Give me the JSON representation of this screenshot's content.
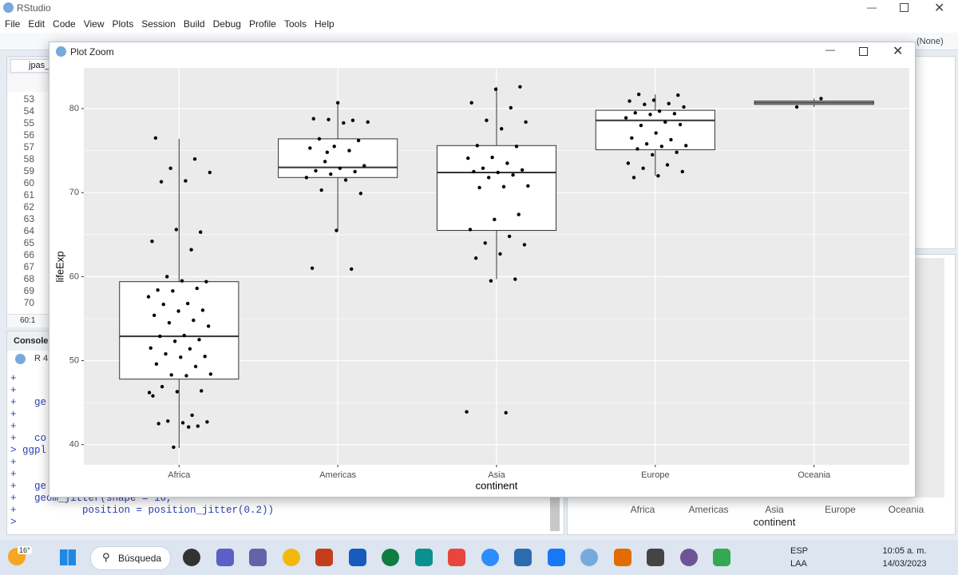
{
  "app": {
    "title": "RStudio",
    "menu": [
      "File",
      "Edit",
      "Code",
      "View",
      "Plots",
      "Session",
      "Build",
      "Debug",
      "Profile",
      "Tools",
      "Help"
    ],
    "project": "(None)",
    "editor_tab": "jpas_l",
    "line_numbers": [
      "53",
      "54",
      "55",
      "56",
      "57",
      "58",
      "59",
      "60",
      "61",
      "62",
      "63",
      "64",
      "65",
      "66",
      "67",
      "68",
      "69",
      "70"
    ],
    "cursor_position": "60:1",
    "console_title": "Console",
    "console_version": "R 4.",
    "console_lines": [
      "+",
      "+",
      "+   ge",
      "+",
      "+",
      "+   co",
      "> ggpl",
      "+",
      "+",
      "+   ge",
      "+   geom_jitter(shape = 16,",
      "+           position = position_jitter(0.2))",
      ">"
    ],
    "right_plot_labels": [
      "Africa",
      "Americas",
      "Asia",
      "Europe",
      "Oceania"
    ],
    "right_plot_x_label": "continent"
  },
  "window": {
    "title": "Plot Zoom"
  },
  "chart_data": {
    "type": "box",
    "x_label": "continent",
    "y_label": "lifeExp",
    "categories": [
      "Africa",
      "Americas",
      "Asia",
      "Europe",
      "Oceania"
    ],
    "boxes": [
      {
        "whisker_low": 39.6,
        "q1": 47.8,
        "median": 52.9,
        "q3": 59.4,
        "whisker_high": 76.4
      },
      {
        "whisker_low": 65.6,
        "q1": 71.8,
        "median": 73.0,
        "q3": 76.4,
        "whisker_high": 80.6
      },
      {
        "whisker_low": 59.7,
        "q1": 65.5,
        "median": 72.4,
        "q3": 75.6,
        "whisker_high": 82.6
      },
      {
        "whisker_low": 72.0,
        "q1": 75.1,
        "median": 78.6,
        "q3": 79.8,
        "whisker_high": 81.7
      },
      {
        "whisker_low": 80.2,
        "q1": 80.5,
        "median": 80.7,
        "q3": 80.9,
        "whisker_high": 81.2
      }
    ],
    "points": [
      [
        76.5,
        74.0,
        72.9,
        72.4,
        71.4,
        71.3,
        65.3,
        65.6,
        64.2,
        63.2,
        60.0,
        59.4,
        59.5,
        58.4,
        58.6,
        58.3,
        57.6,
        56.8,
        56.7,
        56.0,
        55.9,
        55.4,
        54.8,
        54.5,
        54.1,
        53.0,
        52.9,
        52.5,
        52.3,
        51.5,
        51.4,
        50.8,
        50.5,
        50.4,
        49.6,
        49.3,
        48.3,
        48.4,
        48.2,
        46.9,
        46.4,
        46.3,
        45.8,
        43.5,
        42.8,
        42.7,
        42.6,
        42.5,
        42.2,
        39.7,
        46.2,
        42.1
      ],
      [
        80.7,
        78.8,
        78.6,
        78.7,
        78.4,
        78.3,
        76.4,
        76.2,
        75.5,
        75.3,
        75.0,
        73.7,
        73.2,
        72.9,
        72.6,
        72.5,
        72.2,
        71.8,
        71.5,
        70.3,
        69.9,
        65.5,
        61.0,
        60.9,
        74.8
      ],
      [
        82.6,
        82.3,
        80.7,
        80.1,
        78.6,
        78.4,
        77.6,
        75.6,
        75.5,
        74.2,
        74.1,
        73.5,
        72.9,
        72.7,
        72.4,
        72.5,
        72.1,
        71.8,
        70.8,
        70.7,
        70.6,
        67.4,
        66.8,
        65.6,
        64.8,
        64.0,
        63.8,
        62.7,
        62.2,
        59.7,
        59.5,
        43.9,
        43.8
      ],
      [
        81.7,
        81.6,
        81.0,
        80.9,
        80.6,
        80.5,
        80.2,
        79.7,
        79.5,
        79.4,
        79.3,
        78.9,
        78.4,
        78.0,
        78.1,
        77.1,
        76.5,
        76.3,
        75.8,
        75.6,
        75.5,
        75.2,
        74.8,
        74.5,
        73.5,
        73.3,
        72.9,
        72.5,
        72.0,
        71.8
      ],
      [
        81.2,
        80.2
      ]
    ],
    "ylim": [
      37.6,
      84.85
    ],
    "yticks": [
      40,
      50,
      60,
      70,
      80
    ],
    "grid": true,
    "panel_color": "#ebebeb",
    "box_fill": "#ffffff",
    "point_color": "#000000"
  },
  "taskbar": {
    "temperature": "16°",
    "search": "Búsqueda",
    "language": "ESP",
    "layout": "LAA",
    "time": "10:05 a. m.",
    "date": "14/03/2023"
  }
}
